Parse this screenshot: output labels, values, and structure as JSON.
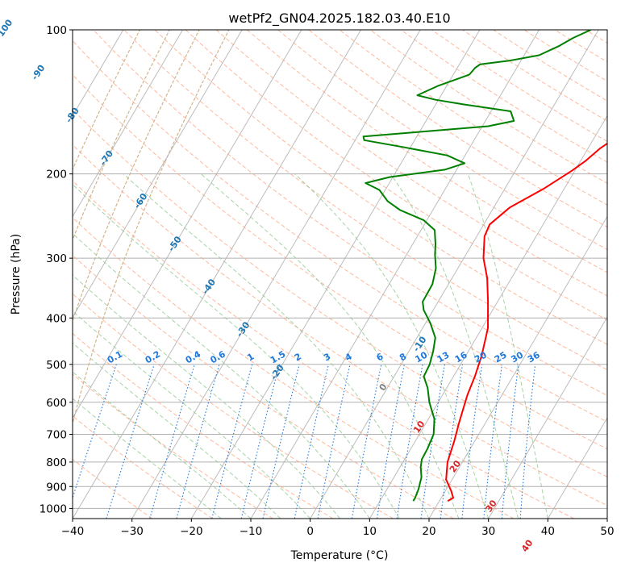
{
  "chart_data": {
    "type": "line",
    "title": "wetPf2_GN04.2025.182.03.40.E10",
    "xlabel": "Temperature (°C)",
    "ylabel": "Pressure (hPa)",
    "xlim": [
      -40,
      50
    ],
    "ylim": [
      1050,
      100
    ],
    "y_scale": "log",
    "grid": true,
    "x_ticks": [
      -40,
      -30,
      -20,
      -10,
      0,
      10,
      20,
      30,
      40,
      50
    ],
    "x_tick_labels": [
      "−40",
      "−30",
      "−20",
      "−10",
      "0",
      "10",
      "20",
      "30",
      "40",
      "50"
    ],
    "y_ticks": [
      100,
      200,
      300,
      400,
      500,
      600,
      700,
      800,
      900,
      1000
    ],
    "y_tick_labels": [
      "100",
      "200",
      "300",
      "400",
      "500",
      "600",
      "700",
      "800",
      "900",
      "1000"
    ],
    "series": [
      {
        "color": "#ff0000",
        "points": [
          [
            21.4,
            965
          ],
          [
            22.0,
            950
          ],
          [
            21.0,
            920
          ],
          [
            19.0,
            870
          ],
          [
            17.5,
            800
          ],
          [
            16.5,
            720
          ],
          [
            15.5,
            660
          ],
          [
            14.2,
            580
          ],
          [
            13.6,
            530
          ],
          [
            12.7,
            480
          ],
          [
            11.0,
            420
          ],
          [
            8.4,
            370
          ],
          [
            5.9,
            330
          ],
          [
            3.3,
            300
          ],
          [
            1.3,
            270
          ],
          [
            1.0,
            255
          ],
          [
            2.7,
            235
          ],
          [
            6.5,
            215
          ],
          [
            9.5,
            197
          ],
          [
            10.8,
            188
          ],
          [
            12.0,
            177
          ],
          [
            13.8,
            167
          ],
          [
            15.5,
            160
          ],
          [
            17.5,
            152
          ],
          [
            18.0,
            144
          ],
          [
            19.0,
            136
          ],
          [
            21.5,
            128
          ],
          [
            24.0,
            121
          ],
          [
            25.5,
            116
          ],
          [
            26.2,
            112
          ],
          [
            26.2,
            106
          ],
          [
            26.0,
            100
          ]
        ]
      },
      {
        "color": "#008000",
        "points": [
          [
            15.6,
            965
          ],
          [
            15.6,
            950
          ],
          [
            15.3,
            910
          ],
          [
            14.6,
            860
          ],
          [
            13.5,
            820
          ],
          [
            12.9,
            790
          ],
          [
            12.8,
            750
          ],
          [
            12.4,
            700
          ],
          [
            11.0,
            650
          ],
          [
            8.5,
            600
          ],
          [
            6.8,
            560
          ],
          [
            5.0,
            530
          ],
          [
            4.8,
            500
          ],
          [
            4.1,
            470
          ],
          [
            3.1,
            440
          ],
          [
            0.8,
            410
          ],
          [
            -1.6,
            385
          ],
          [
            -2.6,
            370
          ],
          [
            -2.7,
            340
          ],
          [
            -3.7,
            315
          ],
          [
            -5.2,
            295
          ],
          [
            -6.2,
            280
          ],
          [
            -7.7,
            262
          ],
          [
            -10.5,
            250
          ],
          [
            -15.5,
            238
          ],
          [
            -18.5,
            228
          ],
          [
            -21.0,
            216
          ],
          [
            -24.0,
            209
          ],
          [
            -20.5,
            203
          ],
          [
            -12.0,
            196
          ],
          [
            -9.3,
            190
          ],
          [
            -13.0,
            183
          ],
          [
            -21.0,
            176
          ],
          [
            -28.5,
            170
          ],
          [
            -29.0,
            167
          ],
          [
            -21.5,
            164
          ],
          [
            -9.0,
            159
          ],
          [
            -5.2,
            155
          ],
          [
            -6.7,
            148
          ],
          [
            -15.5,
            143
          ],
          [
            -20.5,
            140
          ],
          [
            -24.0,
            137
          ],
          [
            -21.5,
            131
          ],
          [
            -18.5,
            126
          ],
          [
            -17.3,
            124
          ],
          [
            -17.0,
            120
          ],
          [
            -16.5,
            118
          ],
          [
            -12.0,
            116
          ],
          [
            -7.5,
            113
          ],
          [
            -5.0,
            108
          ],
          [
            -3.5,
            104
          ],
          [
            -1.3,
            100
          ]
        ]
      }
    ],
    "isotherm_labels": [
      "-100",
      "-90",
      "-80",
      "-70",
      "-60",
      "-50",
      "-40",
      "-30",
      "-20",
      "-10",
      "0",
      "10",
      "20",
      "30",
      "40"
    ],
    "mixing_ratio_labels": [
      "0.1",
      "0.2",
      "0.4",
      "0.6",
      "1",
      "1.5",
      "2",
      "3",
      "4",
      "6",
      "8",
      "10",
      "13",
      "16",
      "20",
      "25",
      "30",
      "36"
    ],
    "colors": {
      "temperature": "#ff0000",
      "dewpoint": "#008000",
      "isotherm": "#b0b0b0",
      "dry_adiabat": "#ffa07a",
      "moist_adiabat": "#90c890",
      "mixing_ratio": "#1e78dc",
      "label_blue": "#1f77b4",
      "label_red": "#d62728",
      "label_gray": "#7f7f7f",
      "lcl_curve": "#d2b48c"
    }
  }
}
